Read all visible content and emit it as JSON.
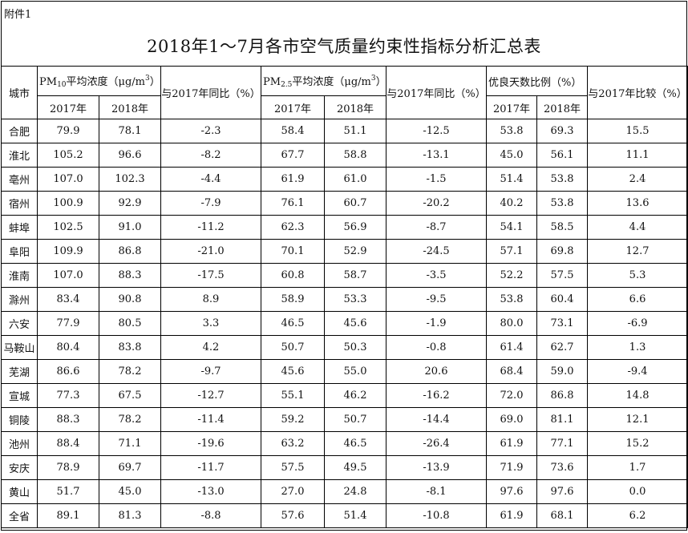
{
  "attachment": "附件1",
  "title": "2018年1～7月各市空气质量约束性指标分析汇总表",
  "headers": {
    "city": "城市",
    "pm10_pre": "PM",
    "pm10_sub": "10",
    "pm10_post": "平均浓度（μg/m",
    "pm10_sup": "3",
    "pm10_close": "）",
    "pm10_yoy": "与2017年同比（%）",
    "pm25_pre": "PM",
    "pm25_sub": "2.5",
    "pm25_post": "平均浓度（μg/m",
    "pm25_sup": "3",
    "pm25_close": "）",
    "pm25_yoy": "与2017年同比（%）",
    "good": "优良天数比例（%）",
    "good_cmp": "与2017年比较（%）",
    "y2017": "2017年",
    "y2018": "2018年"
  },
  "rows": [
    [
      "合肥",
      "79.9",
      "78.1",
      "-2.3",
      "58.4",
      "51.1",
      "-12.5",
      "53.8",
      "69.3",
      "15.5"
    ],
    [
      "淮北",
      "105.2",
      "96.6",
      "-8.2",
      "67.7",
      "58.8",
      "-13.1",
      "45.0",
      "56.1",
      "11.1"
    ],
    [
      "亳州",
      "107.0",
      "102.3",
      "-4.4",
      "61.9",
      "61.0",
      "-1.5",
      "51.4",
      "53.8",
      "2.4"
    ],
    [
      "宿州",
      "100.9",
      "92.9",
      "-7.9",
      "76.1",
      "60.7",
      "-20.2",
      "40.2",
      "53.8",
      "13.6"
    ],
    [
      "蚌埠",
      "102.5",
      "91.0",
      "-11.2",
      "62.3",
      "56.9",
      "-8.7",
      "54.1",
      "58.5",
      "4.4"
    ],
    [
      "阜阳",
      "109.9",
      "86.8",
      "-21.0",
      "70.1",
      "52.9",
      "-24.5",
      "57.1",
      "69.8",
      "12.7"
    ],
    [
      "淮南",
      "107.0",
      "88.3",
      "-17.5",
      "60.8",
      "58.7",
      "-3.5",
      "52.2",
      "57.5",
      "5.3"
    ],
    [
      "滁州",
      "83.4",
      "90.8",
      "8.9",
      "58.9",
      "53.3",
      "-9.5",
      "53.8",
      "60.4",
      "6.6"
    ],
    [
      "六安",
      "77.9",
      "80.5",
      "3.3",
      "46.5",
      "45.6",
      "-1.9",
      "80.0",
      "73.1",
      "-6.9"
    ],
    [
      "马鞍山",
      "80.4",
      "83.8",
      "4.2",
      "50.7",
      "50.3",
      "-0.8",
      "61.4",
      "62.7",
      "1.3"
    ],
    [
      "芜湖",
      "86.6",
      "78.2",
      "-9.7",
      "45.6",
      "55.0",
      "20.6",
      "68.4",
      "59.0",
      "-9.4"
    ],
    [
      "宣城",
      "77.3",
      "67.5",
      "-12.7",
      "55.1",
      "46.2",
      "-16.2",
      "72.0",
      "86.8",
      "14.8"
    ],
    [
      "铜陵",
      "88.3",
      "78.2",
      "-11.4",
      "59.2",
      "50.7",
      "-14.4",
      "69.0",
      "81.1",
      "12.1"
    ],
    [
      "池州",
      "88.4",
      "71.1",
      "-19.6",
      "63.2",
      "46.5",
      "-26.4",
      "61.9",
      "77.1",
      "15.2"
    ],
    [
      "安庆",
      "78.9",
      "69.7",
      "-11.7",
      "57.5",
      "49.5",
      "-13.9",
      "71.9",
      "73.6",
      "1.7"
    ],
    [
      "黄山",
      "51.7",
      "45.0",
      "-13.0",
      "27.0",
      "24.8",
      "-8.1",
      "97.6",
      "97.6",
      "0.0"
    ],
    [
      "全省",
      "89.1",
      "81.3",
      "-8.8",
      "57.6",
      "51.4",
      "-10.8",
      "61.9",
      "68.1",
      "6.2"
    ]
  ]
}
